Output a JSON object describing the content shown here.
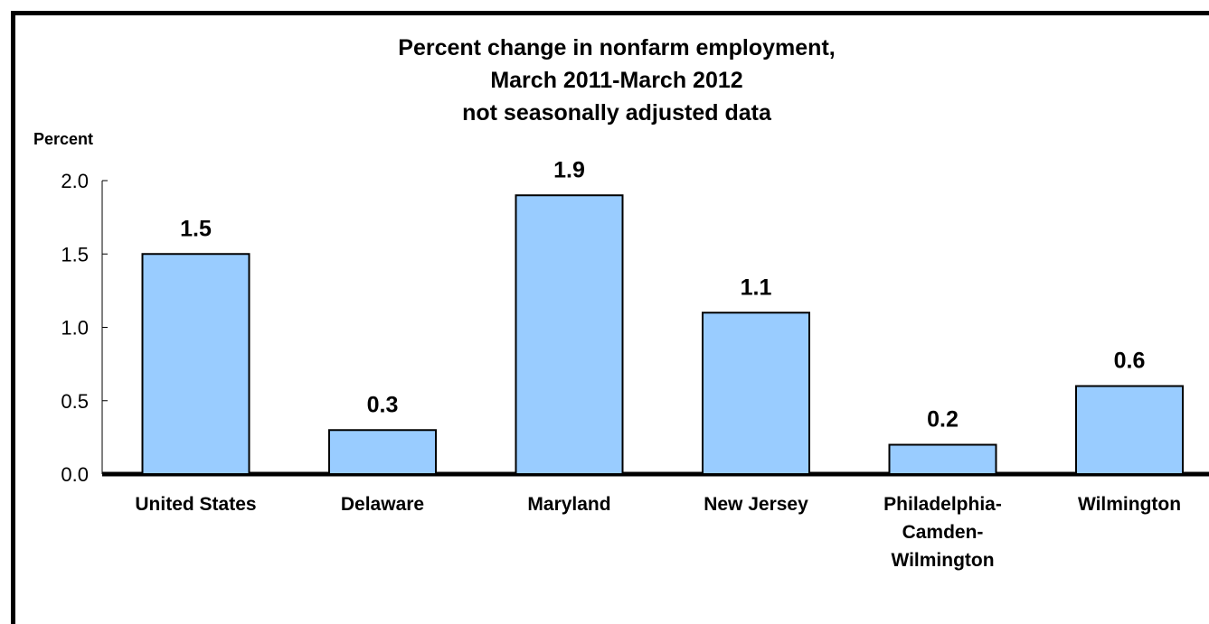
{
  "chart_data": {
    "type": "bar",
    "title": [
      "Percent change in nonfarm employment,",
      "March 2011-March 2012",
      "not seasonally adjusted data"
    ],
    "ylabel": "Percent",
    "xlabel": "",
    "ylim": [
      0,
      2.0
    ],
    "yticks": [
      "0.0",
      "0.5",
      "1.0",
      "1.5",
      "2.0"
    ],
    "categories": [
      [
        "United States"
      ],
      [
        "Delaware"
      ],
      [
        "Maryland"
      ],
      [
        "New Jersey"
      ],
      [
        "Philadelphia-",
        "Camden-",
        "Wilmington"
      ],
      [
        "Wilmington"
      ]
    ],
    "values": [
      1.5,
      0.3,
      1.9,
      1.1,
      0.2,
      0.6
    ],
    "data_labels": [
      "1.5",
      "0.3",
      "1.9",
      "1.1",
      "0.2",
      "0.6"
    ],
    "bar_color": "#99ccff",
    "bar_edge_color": "#000000",
    "grid": false,
    "legend": "none"
  }
}
